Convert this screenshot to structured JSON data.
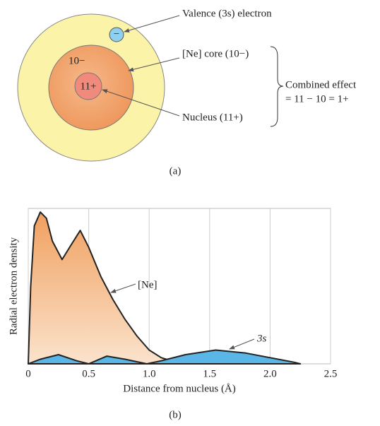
{
  "figure_a": {
    "valence_label": "Valence (3s) electron",
    "electron_sign": "−",
    "core_charge": "10−",
    "nucleus_charge": "11+",
    "core_label": "[Ne] core (10−)",
    "nucleus_label": "Nucleus (11+)",
    "combined_line1": "Combined effect",
    "combined_line2": "= 11 − 10 = 1+",
    "caption": "(a)"
  },
  "chart_data": {
    "type": "area",
    "caption": "(b)",
    "x_label": "Distance from nucleus (Å)",
    "y_label": "Radial electron density",
    "xlim": [
      0,
      2.5
    ],
    "ylim": [
      0,
      100
    ],
    "xticks": [
      0,
      0.5,
      {
        "value": 1,
        "label": "1.0"
      },
      1.5,
      {
        "value": 2,
        "label": "2.0"
      },
      2.5
    ],
    "grid": true,
    "series": [
      {
        "name": "[Ne]",
        "color": "#f2a869",
        "x": [
          0,
          0.02,
          0.05,
          0.1,
          0.15,
          0.2,
          0.28,
          0.35,
          0.43,
          0.5,
          0.6,
          0.7,
          0.8,
          0.9,
          1.0,
          1.1,
          1.2,
          1.3
        ],
        "values": [
          0,
          50,
          90,
          99,
          95,
          80,
          68,
          77,
          87,
          76,
          57,
          42,
          29,
          18,
          9,
          4,
          1.5,
          0
        ]
      },
      {
        "name": "3s",
        "color": "#5ab6e6",
        "x": [
          0,
          0.1,
          0.25,
          0.4,
          0.5,
          0.65,
          0.8,
          0.98,
          1.1,
          1.3,
          1.55,
          1.8,
          2.0,
          2.2,
          2.25
        ],
        "values": [
          0,
          3,
          6,
          2,
          0,
          5,
          3,
          0,
          2,
          6,
          9,
          7,
          4,
          1,
          0
        ]
      }
    ]
  }
}
